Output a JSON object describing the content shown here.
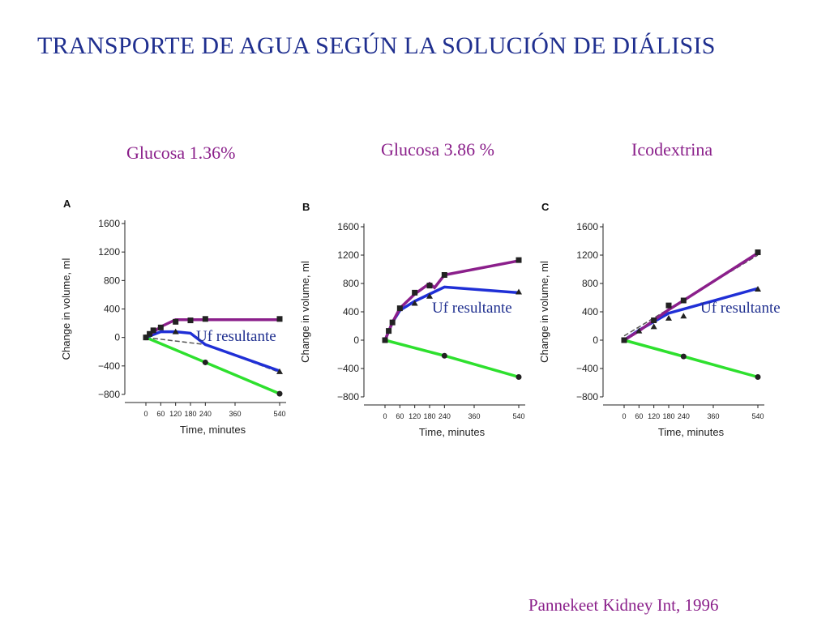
{
  "slide": {
    "title": "TRANSPORTE DE AGUA SEGÚN LA SOLUCIÓN DE DIÁLISIS",
    "citation": "Pannekeet Kidney Int, 1996"
  },
  "colors": {
    "title": "#1f2f8f",
    "heading": "#8a1f8a",
    "purple_series": "#8b1f8b",
    "blue_series": "#1f2fd6",
    "green_series": "#2ee02e",
    "dashed_series": "#555555",
    "markers": "#222222"
  },
  "panels": [
    {
      "heading": "Glucosa 1.36%"
    },
    {
      "heading": "Glucosa 3.86 %"
    },
    {
      "heading": "Icodextrina"
    }
  ],
  "chart_data": [
    {
      "type": "line",
      "panel_label": "A",
      "xlabel": "Time, minutes",
      "ylabel": "Change in volume, ml",
      "xlim": [
        0,
        540
      ],
      "ylim": [
        -800,
        1600
      ],
      "xticks": [
        0,
        60,
        120,
        180,
        240,
        360,
        540
      ],
      "yticks": [
        1600,
        1200,
        800,
        400,
        0,
        -400,
        -800
      ],
      "annotation": "Uf resultante",
      "series": [
        {
          "role": "purple",
          "x": [
            0,
            60,
            120,
            240,
            540
          ],
          "y": [
            0,
            150,
            250,
            250,
            250
          ]
        },
        {
          "role": "blue",
          "x": [
            0,
            60,
            120,
            180,
            240,
            540
          ],
          "y": [
            0,
            80,
            80,
            60,
            -100,
            -470
          ]
        },
        {
          "role": "dashed",
          "x": [
            0,
            240,
            540
          ],
          "y": [
            0,
            -100,
            -490
          ]
        },
        {
          "role": "green",
          "x": [
            0,
            240,
            540
          ],
          "y": [
            0,
            -350,
            -790
          ]
        },
        {
          "role": "squares",
          "x": [
            0,
            15,
            30,
            60,
            120,
            180,
            240,
            540
          ],
          "y": [
            0,
            50,
            100,
            140,
            220,
            240,
            260,
            260
          ]
        },
        {
          "role": "circles",
          "x": [
            0,
            240,
            540
          ],
          "y": [
            0,
            -350,
            -790
          ]
        },
        {
          "role": "triangles",
          "x": [
            120,
            540
          ],
          "y": [
            80,
            -480
          ]
        }
      ]
    },
    {
      "type": "line",
      "panel_label": "B",
      "xlabel": "Time, minutes",
      "ylabel": "Change in volume, ml",
      "xlim": [
        0,
        540
      ],
      "ylim": [
        -800,
        1600
      ],
      "xticks": [
        0,
        60,
        120,
        180,
        240,
        360,
        540
      ],
      "yticks": [
        1600,
        1200,
        800,
        400,
        0,
        -400,
        -800
      ],
      "annotation": "Uf resultante",
      "series": [
        {
          "role": "purple",
          "x": [
            0,
            30,
            60,
            120,
            180,
            200,
            240,
            540
          ],
          "y": [
            0,
            250,
            450,
            650,
            800,
            740,
            920,
            1120
          ]
        },
        {
          "role": "blue",
          "x": [
            0,
            30,
            60,
            120,
            180,
            240,
            540
          ],
          "y": [
            0,
            250,
            420,
            550,
            650,
            750,
            670
          ]
        },
        {
          "role": "dashed",
          "x": [
            0,
            240,
            540
          ],
          "y": [
            0,
            -220,
            -520
          ]
        },
        {
          "role": "green",
          "x": [
            0,
            240,
            540
          ],
          "y": [
            0,
            -220,
            -520
          ]
        },
        {
          "role": "squares",
          "x": [
            0,
            15,
            30,
            60,
            120,
            180,
            240,
            540
          ],
          "y": [
            0,
            130,
            250,
            450,
            670,
            770,
            920,
            1130
          ]
        },
        {
          "role": "circles",
          "x": [
            0,
            240,
            540
          ],
          "y": [
            0,
            -220,
            -520
          ]
        },
        {
          "role": "triangles",
          "x": [
            120,
            180,
            540
          ],
          "y": [
            520,
            620,
            680
          ]
        }
      ]
    },
    {
      "type": "line",
      "panel_label": "C",
      "xlabel": "Time, minutes",
      "ylabel": "Change in volume, ml",
      "xlim": [
        0,
        540
      ],
      "ylim": [
        -800,
        1600
      ],
      "xticks": [
        0,
        60,
        120,
        180,
        240,
        360,
        540
      ],
      "yticks": [
        1600,
        1200,
        800,
        400,
        0,
        -400,
        -800
      ],
      "annotation": "Uf resultante",
      "series": [
        {
          "role": "purple",
          "x": [
            0,
            60,
            180,
            240,
            540
          ],
          "y": [
            0,
            130,
            430,
            560,
            1230
          ]
        },
        {
          "role": "blue",
          "x": [
            0,
            60,
            180,
            540
          ],
          "y": [
            0,
            140,
            380,
            730
          ]
        },
        {
          "role": "dashed",
          "x": [
            0,
            540
          ],
          "y": [
            60,
            1200
          ]
        },
        {
          "role": "green",
          "x": [
            0,
            240,
            540
          ],
          "y": [
            0,
            -230,
            -520
          ]
        },
        {
          "role": "squares",
          "x": [
            0,
            120,
            180,
            240,
            540
          ],
          "y": [
            0,
            280,
            490,
            560,
            1240
          ]
        },
        {
          "role": "circles",
          "x": [
            0,
            240,
            540
          ],
          "y": [
            0,
            -230,
            -520
          ]
        },
        {
          "role": "triangles",
          "x": [
            60,
            120,
            180,
            240,
            540
          ],
          "y": [
            130,
            190,
            310,
            340,
            720
          ]
        }
      ]
    }
  ]
}
